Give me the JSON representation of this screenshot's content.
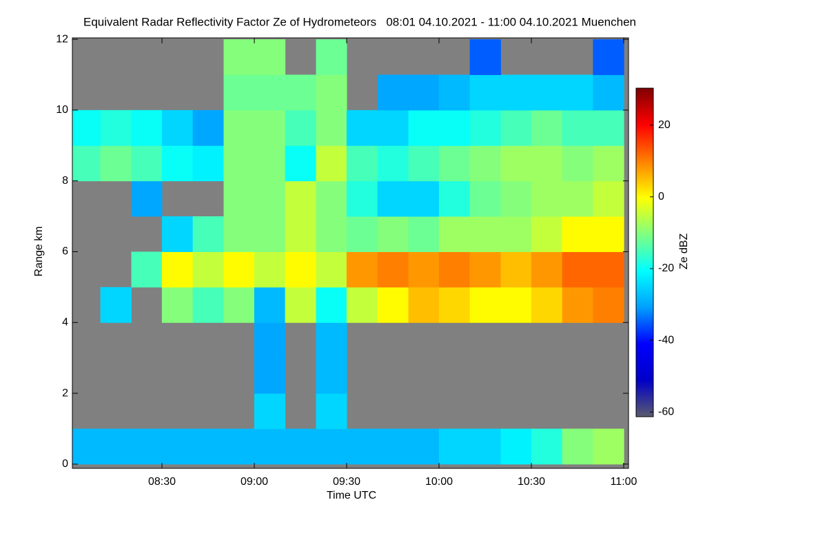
{
  "chart_data": {
    "type": "heatmap",
    "title": "Equivalent Radar Reflectivity Factor Ze of Hydrometeors   08:01 04.10.2021 - 11:00 04.10.2021 Muenchen",
    "x_label": "Time UTC",
    "y_label": "Range km",
    "colorbar_label": "Ze dBZ",
    "xlim": [
      8.015,
      11.026
    ],
    "xticks": [
      {
        "value": 8.5,
        "label": "08:30"
      },
      {
        "value": 9.0,
        "label": "09:00"
      },
      {
        "value": 9.5,
        "label": "09:30"
      },
      {
        "value": 10.0,
        "label": "10:00"
      },
      {
        "value": 10.5,
        "label": "10:30"
      },
      {
        "value": 11.0,
        "label": "11:00"
      }
    ],
    "ylim": [
      -0.12,
      12.04
    ],
    "yticks": [
      0,
      2,
      4,
      6,
      8,
      10,
      12
    ],
    "zlim": [
      -61.3,
      30.3
    ],
    "zticks": [
      20,
      0,
      -20,
      -40,
      -60
    ],
    "colormap": [
      "#5a5a6e",
      "#0000c8",
      "#0000ff",
      "#00a0ff",
      "#00ffff",
      "#80ff80",
      "#ffff00",
      "#ff8000",
      "#ff0000",
      "#800000"
    ],
    "missing_color": "#808080",
    "x": [
      8.083,
      8.25,
      8.417,
      8.583,
      8.75,
      8.917,
      9.083,
      9.25,
      9.417,
      9.583,
      9.75,
      9.917,
      10.083,
      10.25,
      10.417,
      10.583,
      10.75,
      10.917
    ],
    "y": [
      0.5,
      1.5,
      2.5,
      3.5,
      4.5,
      5.5,
      6.5,
      7.5,
      8.5,
      9.5,
      10.5,
      11.5
    ],
    "z": [
      [
        -28,
        -28,
        -28,
        -28,
        -28,
        -28,
        -28,
        -28,
        -28,
        -28,
        -28,
        -28,
        -25,
        -25,
        -22,
        -18,
        -10,
        -8
      ],
      [
        null,
        null,
        null,
        null,
        null,
        null,
        -25,
        null,
        -25,
        null,
        null,
        null,
        null,
        null,
        null,
        null,
        null,
        null
      ],
      [
        null,
        null,
        null,
        null,
        null,
        null,
        -30,
        null,
        -28,
        null,
        null,
        null,
        null,
        null,
        null,
        null,
        null,
        null
      ],
      [
        null,
        null,
        null,
        null,
        null,
        null,
        -30,
        null,
        -28,
        null,
        null,
        null,
        null,
        null,
        null,
        null,
        null,
        null
      ],
      [
        null,
        -25,
        null,
        -10,
        -15,
        -10,
        -28,
        -5,
        -20,
        -5,
        0,
        5,
        3,
        0,
        0,
        3,
        8,
        10
      ],
      [
        null,
        null,
        -15,
        0,
        -5,
        0,
        -5,
        0,
        -5,
        8,
        10,
        8,
        10,
        8,
        5,
        8,
        12,
        12
      ],
      [
        null,
        null,
        null,
        -25,
        -15,
        -10,
        -10,
        -5,
        -10,
        -12,
        -10,
        -12,
        -8,
        -8,
        -8,
        -5,
        0,
        0
      ],
      [
        null,
        null,
        -30,
        null,
        null,
        -10,
        -10,
        -5,
        -10,
        -18,
        -25,
        -25,
        -18,
        -12,
        -10,
        -8,
        -8,
        -5
      ],
      [
        -15,
        -12,
        -15,
        -20,
        -22,
        -10,
        -10,
        -20,
        -5,
        -15,
        -18,
        -15,
        -12,
        -10,
        -8,
        -8,
        -10,
        -8
      ],
      [
        -20,
        -18,
        -20,
        -25,
        -30,
        -10,
        -10,
        -15,
        -10,
        -25,
        -25,
        -20,
        -20,
        -18,
        -15,
        -12,
        -15,
        -15
      ],
      [
        null,
        null,
        null,
        null,
        null,
        -12,
        -12,
        -12,
        -10,
        null,
        -30,
        -30,
        -28,
        -25,
        -25,
        -25,
        -25,
        -28
      ],
      [
        null,
        null,
        null,
        null,
        null,
        -10,
        -10,
        null,
        -12,
        null,
        null,
        null,
        null,
        -35,
        null,
        null,
        null,
        -35
      ]
    ]
  }
}
